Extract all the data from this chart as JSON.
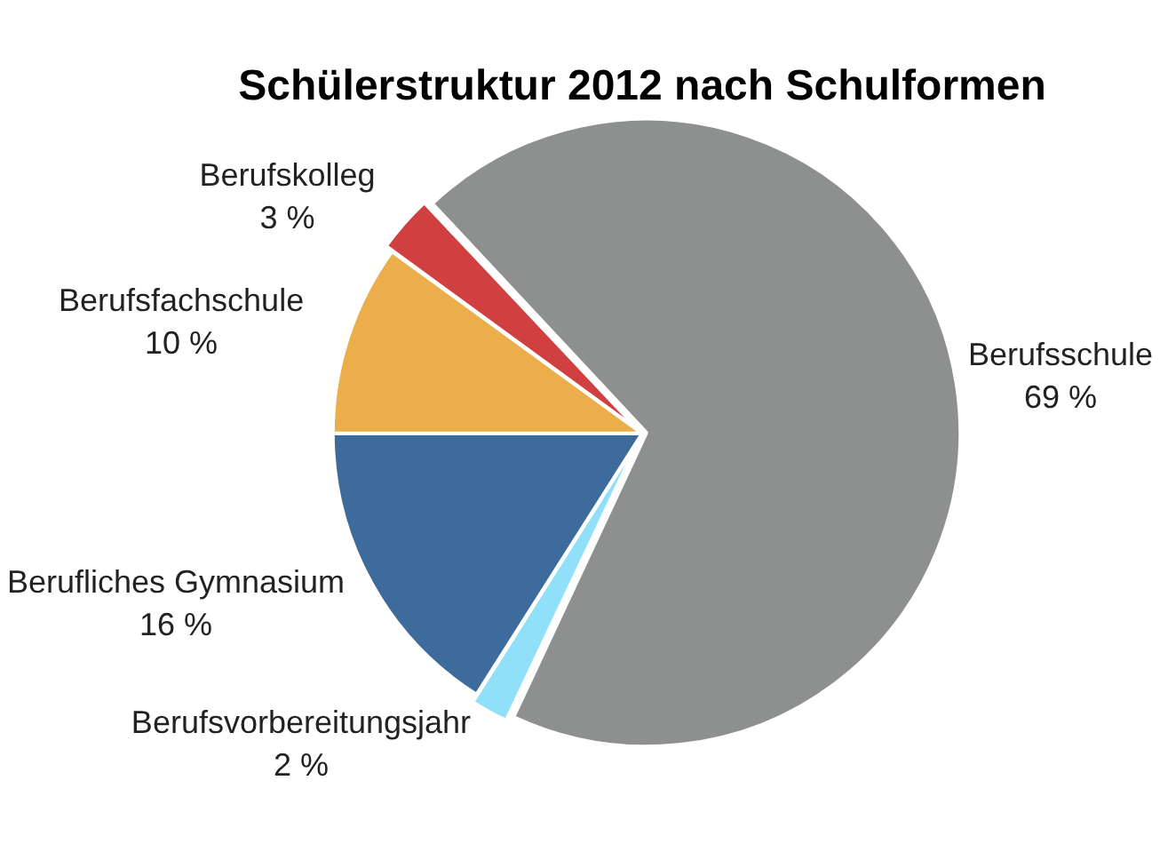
{
  "chart_data": {
    "type": "pie",
    "title": "Schülerstruktur 2012 nach Schulformen",
    "categories": [
      "Berufsschule",
      "Berufsvorbereitungsjahr",
      "Berufliches Gymnasium",
      "Berufsfachschule",
      "Berufskolleg"
    ],
    "values": [
      69,
      2,
      16,
      10,
      3
    ],
    "value_labels": [
      "69 %",
      "2 %",
      "16 %",
      "10 %",
      "3 %"
    ],
    "colors": [
      "#8e9090",
      "#8fe0f8",
      "#3d6b9c",
      "#ebae4a",
      "#d14040"
    ],
    "legend": false
  }
}
